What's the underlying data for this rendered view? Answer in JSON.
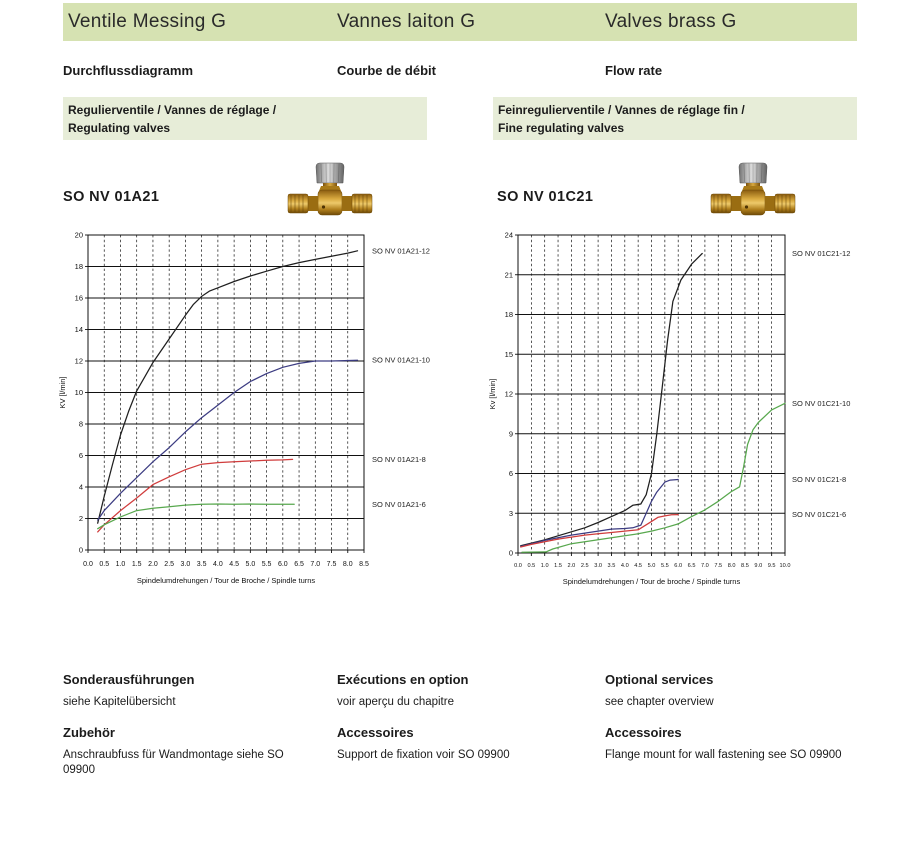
{
  "header": {
    "title_de": "Ventile Messing G",
    "title_fr": "Vannes laiton G",
    "title_en": "Valves brass G"
  },
  "subtitle": {
    "de": "Durchflussdiagramm",
    "fr": "Courbe de débit",
    "en": "Flow rate"
  },
  "banner_left": {
    "line1": "Regulierventile / Vannes de réglage /",
    "line2": "Regulating valves"
  },
  "banner_right": {
    "line1": "Feinregulierventile / Vannes de réglage fin /",
    "line2": "Fine regulating valves"
  },
  "product_left": {
    "code": "SO NV 01A21"
  },
  "product_right": {
    "code": "SO NV 01C21"
  },
  "footer": {
    "columns": [
      {
        "heading1": "Sonderausführungen",
        "body1": "siehe Kapitelübersicht",
        "heading2": "Zubehör",
        "body2": "Anschraubfuss für Wandmontage siehe SO 09900"
      },
      {
        "heading1": "Exécutions en option",
        "body1": "voir aperçu du chapitre",
        "heading2": "Accessoires",
        "body2": "Support de fixation voir SO 09900"
      },
      {
        "heading1": "Optional services",
        "body1": "see chapter overview",
        "heading2": "Accessoires",
        "body2": "Flange mount for wall fastening see SO 09900"
      }
    ]
  },
  "colors": {
    "header_green": "#d6e2b2",
    "banner_green": "#e7edd8",
    "curve_black": "#1f1f1f",
    "curve_blue": "#3c3c82",
    "curve_red": "#d03c3c",
    "curve_green": "#58a84e"
  },
  "chart_data": [
    {
      "id": "chartL",
      "type": "line",
      "title": "",
      "xlabel": "Spindelumdrehungen / Tour de Broche / Spindle turns",
      "ylabel": "KV [l/min]",
      "xlim": [
        0,
        8.5
      ],
      "xstep": 0.5,
      "ylim": [
        0,
        20
      ],
      "ystep": 2,
      "x_tick_labels": [
        "0.0",
        "0.5",
        "1.0",
        "1.5",
        "2.0",
        "2.5",
        "3.0",
        "3.5",
        "4.0",
        "4.5",
        "5.0",
        "5.5",
        "6.0",
        "6.5",
        "7.0",
        "7.5",
        "8.0",
        "8.5"
      ],
      "y_tick_labels": [
        "0",
        "2",
        "4",
        "6",
        "8",
        "10",
        "12",
        "14",
        "16",
        "18",
        "20"
      ],
      "grid": {
        "horizontal": "solid",
        "vertical": "dashed"
      },
      "legend_position": "right-of-plot",
      "series": [
        {
          "name": "SO NV 01A21-12",
          "color": "#1f1f1f",
          "points": [
            [
              0.3,
              1.7
            ],
            [
              0.5,
              3.4
            ],
            [
              0.75,
              5.4
            ],
            [
              1.0,
              7.3
            ],
            [
              1.25,
              8.8
            ],
            [
              1.5,
              10.1
            ],
            [
              1.75,
              11.0
            ],
            [
              2.0,
              11.9
            ],
            [
              2.5,
              13.4
            ],
            [
              3.0,
              14.9
            ],
            [
              3.25,
              15.6
            ],
            [
              3.5,
              16.1
            ],
            [
              3.75,
              16.45
            ],
            [
              4.0,
              16.65
            ],
            [
              4.5,
              17.05
            ],
            [
              5.0,
              17.4
            ],
            [
              5.5,
              17.7
            ],
            [
              6.0,
              18.0
            ],
            [
              6.5,
              18.25
            ],
            [
              7.0,
              18.45
            ],
            [
              7.5,
              18.65
            ],
            [
              8.0,
              18.85
            ],
            [
              8.3,
              19.0
            ]
          ]
        },
        {
          "name": "SO NV 01A21-10",
          "color": "#3c3c82",
          "points": [
            [
              0.3,
              1.9
            ],
            [
              0.5,
              2.5
            ],
            [
              1.0,
              3.6
            ],
            [
              1.5,
              4.6
            ],
            [
              2.0,
              5.6
            ],
            [
              2.5,
              6.5
            ],
            [
              3.0,
              7.5
            ],
            [
              3.5,
              8.4
            ],
            [
              4.0,
              9.2
            ],
            [
              4.5,
              10.0
            ],
            [
              5.0,
              10.7
            ],
            [
              5.5,
              11.2
            ],
            [
              6.0,
              11.6
            ],
            [
              6.5,
              11.85
            ],
            [
              7.0,
              12.0
            ],
            [
              7.5,
              12.0
            ],
            [
              8.3,
              12.05
            ]
          ]
        },
        {
          "name": "SO NV 01A21-8",
          "color": "#d03c3c",
          "points": [
            [
              0.3,
              1.15
            ],
            [
              0.5,
              1.6
            ],
            [
              1.0,
              2.5
            ],
            [
              1.5,
              3.3
            ],
            [
              2.0,
              4.15
            ],
            [
              2.5,
              4.65
            ],
            [
              3.0,
              5.1
            ],
            [
              3.5,
              5.45
            ],
            [
              4.0,
              5.55
            ],
            [
              4.5,
              5.6
            ],
            [
              5.0,
              5.65
            ],
            [
              5.5,
              5.7
            ],
            [
              6.0,
              5.72
            ],
            [
              6.3,
              5.75
            ]
          ]
        },
        {
          "name": "SO NV 01A21-6",
          "color": "#58a84e",
          "points": [
            [
              0.3,
              1.35
            ],
            [
              0.5,
              1.6
            ],
            [
              1.0,
              2.1
            ],
            [
              1.5,
              2.5
            ],
            [
              2.0,
              2.65
            ],
            [
              2.5,
              2.75
            ],
            [
              3.0,
              2.85
            ],
            [
              3.5,
              2.9
            ],
            [
              4.0,
              2.92
            ],
            [
              4.5,
              2.9
            ],
            [
              5.0,
              2.92
            ],
            [
              5.5,
              2.9
            ],
            [
              6.0,
              2.9
            ],
            [
              6.35,
              2.9
            ]
          ]
        }
      ]
    },
    {
      "id": "chartR",
      "type": "line",
      "title": "",
      "xlabel": "Spindelumdrehungen / Tour de broche / Spindle turns",
      "ylabel": "Kv [l/min]",
      "xlim": [
        0,
        10
      ],
      "xstep": 0.5,
      "ylim": [
        0,
        24
      ],
      "ystep": 3,
      "x_tick_labels": [
        "0.0",
        "0.5",
        "1.0",
        "1.5",
        "2.0",
        "2.5",
        "3.0",
        "3.5",
        "4.0",
        "4.5",
        "5.0",
        "5.5",
        "6.0",
        "6.5",
        "7.0",
        "7.5",
        "8.0",
        "8.5",
        "9.0",
        "9.5",
        "10.0"
      ],
      "y_tick_labels": [
        "0",
        "3",
        "6",
        "9",
        "12",
        "15",
        "18",
        "21",
        "24"
      ],
      "grid": {
        "horizontal": "solid",
        "vertical": "dashed"
      },
      "legend_position": "right-of-plot",
      "series": [
        {
          "name": "SO NV 01C21-12",
          "color": "#1f1f1f",
          "points": [
            [
              0.1,
              0.55
            ],
            [
              0.5,
              0.75
            ],
            [
              1.0,
              1.0
            ],
            [
              1.5,
              1.3
            ],
            [
              2.0,
              1.6
            ],
            [
              2.5,
              1.9
            ],
            [
              3.0,
              2.3
            ],
            [
              3.5,
              2.75
            ],
            [
              4.0,
              3.2
            ],
            [
              4.3,
              3.6
            ],
            [
              4.6,
              3.7
            ],
            [
              4.8,
              4.4
            ],
            [
              5.0,
              6.0
            ],
            [
              5.2,
              9.0
            ],
            [
              5.4,
              12.5
            ],
            [
              5.6,
              16.0
            ],
            [
              5.8,
              19.0
            ],
            [
              6.1,
              20.6
            ],
            [
              6.5,
              21.8
            ],
            [
              6.9,
              22.6
            ]
          ]
        },
        {
          "name": "SO NV 01C21-10",
          "color": "#58a84e",
          "points": [
            [
              0.15,
              0.05
            ],
            [
              1.05,
              0.08
            ],
            [
              1.3,
              0.3
            ],
            [
              2.0,
              0.7
            ],
            [
              3.0,
              1.0
            ],
            [
              4.0,
              1.3
            ],
            [
              4.5,
              1.45
            ],
            [
              5.0,
              1.65
            ],
            [
              5.5,
              1.9
            ],
            [
              6.0,
              2.2
            ],
            [
              6.5,
              2.75
            ],
            [
              7.0,
              3.25
            ],
            [
              7.5,
              3.9
            ],
            [
              8.0,
              4.65
            ],
            [
              8.3,
              5.0
            ],
            [
              8.45,
              6.5
            ],
            [
              8.6,
              8.2
            ],
            [
              8.8,
              9.3
            ],
            [
              9.0,
              9.85
            ],
            [
              9.5,
              10.8
            ],
            [
              10.0,
              11.3
            ]
          ]
        },
        {
          "name": "SO NV 01C21-8",
          "color": "#3c3c82",
          "points": [
            [
              0.1,
              0.5
            ],
            [
              0.5,
              0.7
            ],
            [
              1.0,
              0.95
            ],
            [
              1.5,
              1.15
            ],
            [
              2.0,
              1.35
            ],
            [
              2.5,
              1.5
            ],
            [
              3.0,
              1.65
            ],
            [
              3.5,
              1.8
            ],
            [
              4.0,
              1.85
            ],
            [
              4.3,
              1.9
            ],
            [
              4.6,
              2.1
            ],
            [
              4.8,
              3.0
            ],
            [
              5.0,
              3.9
            ],
            [
              5.2,
              4.6
            ],
            [
              5.5,
              5.35
            ],
            [
              5.7,
              5.5
            ],
            [
              6.0,
              5.55
            ]
          ]
        },
        {
          "name": "SO NV 01C21-6",
          "color": "#d03c3c",
          "points": [
            [
              0.1,
              0.45
            ],
            [
              0.5,
              0.65
            ],
            [
              1.0,
              0.85
            ],
            [
              1.5,
              1.05
            ],
            [
              2.0,
              1.2
            ],
            [
              2.5,
              1.35
            ],
            [
              3.0,
              1.45
            ],
            [
              3.5,
              1.55
            ],
            [
              4.0,
              1.65
            ],
            [
              4.5,
              1.75
            ],
            [
              4.9,
              2.25
            ],
            [
              5.25,
              2.7
            ],
            [
              5.5,
              2.8
            ],
            [
              5.75,
              2.88
            ],
            [
              6.0,
              2.9
            ]
          ]
        }
      ]
    }
  ]
}
